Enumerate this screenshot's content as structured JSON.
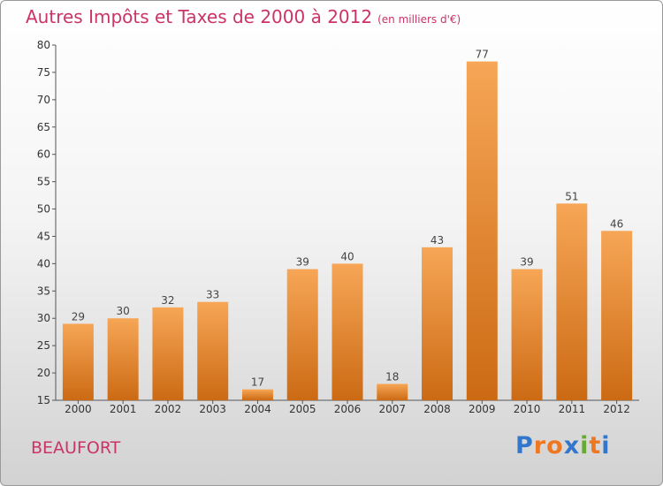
{
  "title": "Autres Impôts et Taxes de 2000 à 2012",
  "subtitle": "(en milliers d'€)",
  "place": "BEAUFORT",
  "logo": "Proxiti",
  "colors": {
    "title": "#cc3366",
    "bar_light": "#f6a656",
    "bar_dark": "#cc6a14",
    "logo_letters": [
      "#3377cc",
      "#ee7722",
      "#ee7722",
      "#3377cc",
      "#66aa33",
      "#ee7722",
      "#3377cc"
    ]
  },
  "chart_data": {
    "type": "bar",
    "title": "Autres Impôts et Taxes de 2000 à 2012",
    "subtitle": "(en milliers d'€)",
    "xlabel": "",
    "ylabel": "",
    "categories": [
      "2000",
      "2001",
      "2002",
      "2003",
      "2004",
      "2005",
      "2006",
      "2007",
      "2008",
      "2009",
      "2010",
      "2011",
      "2012"
    ],
    "values": [
      29,
      30,
      32,
      33,
      17,
      39,
      40,
      18,
      43,
      77,
      39,
      51,
      46
    ],
    "ylim": [
      15,
      80
    ],
    "yticks": [
      15,
      20,
      25,
      30,
      35,
      40,
      45,
      50,
      55,
      60,
      65,
      70,
      75,
      80
    ],
    "grid": false,
    "legend": "none"
  }
}
